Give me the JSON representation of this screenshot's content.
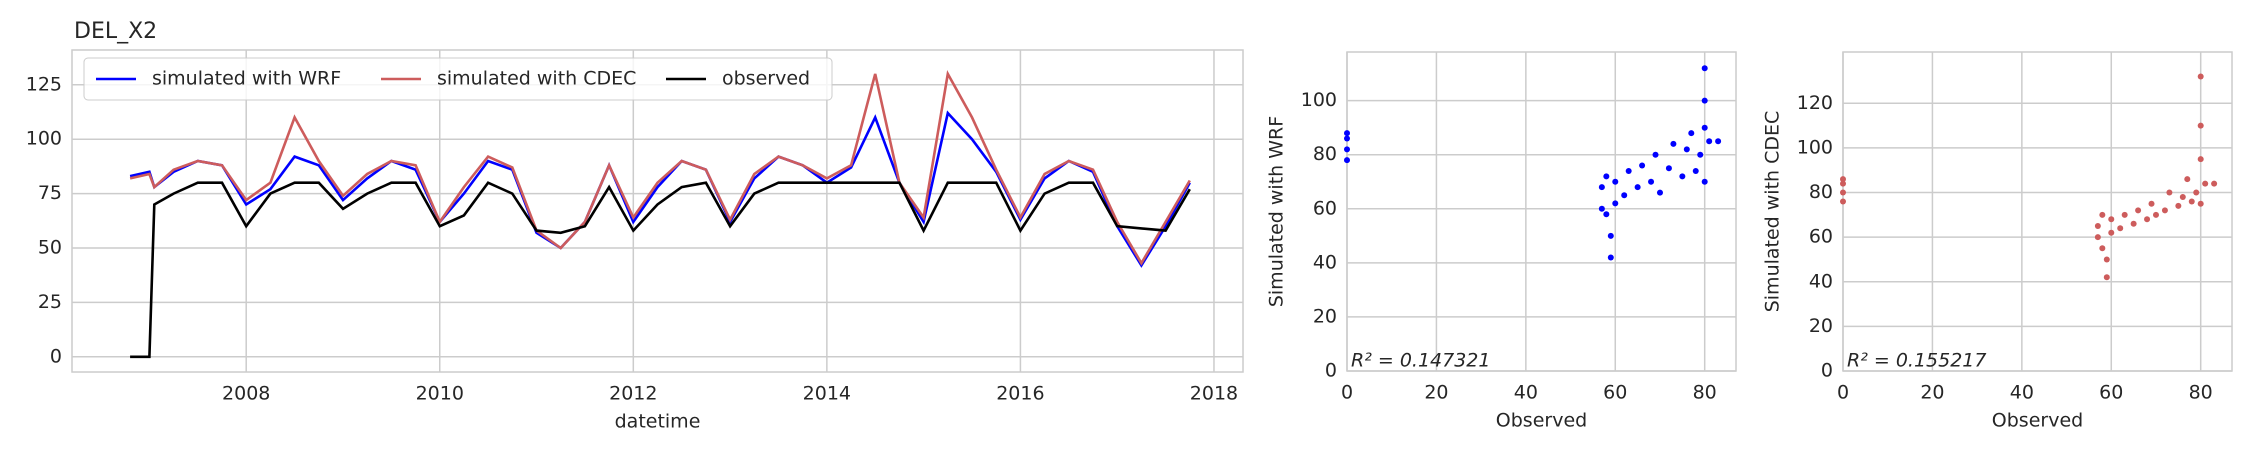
{
  "chart_data": [
    {
      "type": "line",
      "title": "DEL_X2",
      "xlabel": "datetime",
      "x": [
        2006.8,
        2007.0,
        2007.05,
        2007.25,
        2007.5,
        2007.75,
        2008.0,
        2008.25,
        2008.5,
        2008.75,
        2009.0,
        2009.25,
        2009.5,
        2009.75,
        2010.0,
        2010.25,
        2010.5,
        2010.75,
        2011.0,
        2011.25,
        2011.5,
        2011.75,
        2012.0,
        2012.25,
        2012.5,
        2012.75,
        2013.0,
        2013.25,
        2013.5,
        2013.75,
        2014.0,
        2014.25,
        2014.5,
        2014.75,
        2015.0,
        2015.25,
        2015.5,
        2015.75,
        2016.0,
        2016.25,
        2016.5,
        2016.75,
        2017.0,
        2017.25,
        2017.5,
        2017.75
      ],
      "series": [
        {
          "name": "simulated with WRF",
          "color": "#0000ff",
          "values": [
            83,
            85,
            78,
            85,
            90,
            88,
            70,
            77,
            92,
            88,
            72,
            82,
            90,
            86,
            62,
            75,
            90,
            86,
            57,
            50,
            62,
            88,
            62,
            78,
            90,
            86,
            62,
            82,
            92,
            88,
            80,
            87,
            110,
            80,
            62,
            112,
            100,
            85,
            63,
            82,
            90,
            85,
            60,
            42,
            60,
            80
          ]
        },
        {
          "name": "simulated with CDEC",
          "color": "#cd5c5c",
          "values": [
            82,
            84,
            78,
            86,
            90,
            88,
            72,
            80,
            110,
            90,
            74,
            84,
            90,
            88,
            62,
            78,
            92,
            87,
            58,
            50,
            62,
            88,
            64,
            80,
            90,
            86,
            63,
            84,
            92,
            88,
            82,
            88,
            130,
            80,
            64,
            130,
            110,
            86,
            64,
            84,
            90,
            86,
            62,
            43,
            62,
            81
          ]
        },
        {
          "name": "observed",
          "color": "#000000",
          "values": [
            0,
            0,
            70,
            75,
            80,
            80,
            60,
            75,
            80,
            80,
            68,
            75,
            80,
            80,
            60,
            65,
            80,
            75,
            58,
            57,
            60,
            78,
            58,
            70,
            78,
            80,
            60,
            75,
            80,
            80,
            80,
            80,
            80,
            80,
            58,
            80,
            80,
            80,
            58,
            75,
            80,
            80,
            60,
            59,
            58,
            77
          ]
        }
      ],
      "xlim": [
        2006.2,
        2018.3
      ],
      "xticks": [
        2008,
        2010,
        2012,
        2014,
        2016,
        2018
      ],
      "ylim": [
        -7,
        141
      ],
      "yticks": [
        0,
        25,
        50,
        75,
        100,
        125
      ],
      "grid": true,
      "legend": "upper left"
    },
    {
      "type": "scatter",
      "xlabel": "Observed",
      "ylabel": "Simulated with WRF",
      "annotation": "R² = 0.147321",
      "color": "#0000ff",
      "x": [
        0,
        0,
        0,
        0,
        57,
        57,
        58,
        58,
        59,
        59,
        60,
        60,
        62,
        63,
        65,
        66,
        68,
        69,
        70,
        72,
        73,
        75,
        76,
        77,
        78,
        79,
        80,
        80,
        80,
        80,
        81,
        83
      ],
      "values": [
        78,
        82,
        86,
        88,
        60,
        68,
        58,
        72,
        42,
        50,
        62,
        70,
        65,
        74,
        68,
        76,
        70,
        80,
        66,
        75,
        84,
        72,
        82,
        88,
        74,
        80,
        70,
        90,
        100,
        112,
        85,
        85
      ],
      "xlim": [
        0,
        87
      ],
      "xticks": [
        0,
        20,
        40,
        60,
        80
      ],
      "ylim": [
        0,
        118
      ],
      "yticks": [
        0,
        20,
        40,
        60,
        80,
        100
      ],
      "grid": true
    },
    {
      "type": "scatter",
      "xlabel": "Observed",
      "ylabel": "Simulated with CDEC",
      "annotation": "R² = 0.155217",
      "color": "#cd5c5c",
      "x": [
        0,
        0,
        0,
        0,
        57,
        57,
        58,
        58,
        59,
        59,
        60,
        60,
        62,
        63,
        65,
        66,
        68,
        69,
        70,
        72,
        73,
        75,
        76,
        77,
        78,
        79,
        80,
        80,
        80,
        80,
        81,
        83
      ],
      "values": [
        76,
        80,
        84,
        86,
        60,
        65,
        55,
        70,
        42,
        50,
        62,
        68,
        64,
        70,
        66,
        72,
        68,
        75,
        70,
        72,
        80,
        74,
        78,
        86,
        76,
        80,
        75,
        95,
        110,
        132,
        84,
        84
      ],
      "xlim": [
        0,
        87
      ],
      "xticks": [
        0,
        20,
        40,
        60,
        80
      ],
      "ylim": [
        0,
        143
      ],
      "yticks": [
        0,
        20,
        40,
        60,
        80,
        100,
        120
      ],
      "grid": true
    }
  ]
}
